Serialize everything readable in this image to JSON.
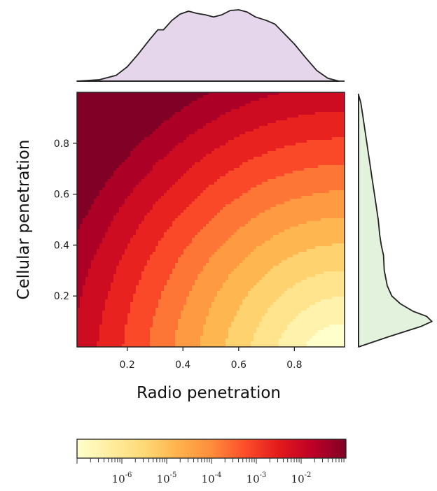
{
  "chart_data": {
    "type": "heatmap",
    "title": "",
    "xlabel": "Radio penetration",
    "ylabel": "Cellular penetration",
    "xlim": [
      0.02,
      0.98
    ],
    "ylim": [
      0.0,
      1.0
    ],
    "x_ticks": [
      0.2,
      0.4,
      0.6,
      0.8
    ],
    "y_ticks": [
      0.2,
      0.4,
      0.6,
      0.8
    ],
    "x_tick_labels": [
      "0.2",
      "0.4",
      "0.6",
      "0.8"
    ],
    "y_tick_labels": [
      "0.2",
      "0.4",
      "0.6",
      "0.8"
    ],
    "contour_levels": 12,
    "colorbar": {
      "scale": "log",
      "range": [
        1e-07,
        0.1
      ],
      "ticks": [
        {
          "value": 1e-06,
          "base": "10",
          "exp": "-6"
        },
        {
          "value": 1e-05,
          "base": "10",
          "exp": "-5"
        },
        {
          "value": 0.0001,
          "base": "10",
          "exp": "-4"
        },
        {
          "value": 0.001,
          "base": "10",
          "exp": "-3"
        },
        {
          "value": 0.01,
          "base": "10",
          "exp": "-2"
        }
      ],
      "colors": [
        "#ffffcc",
        "#ffeda0",
        "#fed976",
        "#feb24c",
        "#fd8d3c",
        "#fc4e2a",
        "#e31a1c",
        "#bd0026",
        "#800026"
      ]
    },
    "top_marginal": {
      "variable": "Radio penetration",
      "fill": "#e6d6eb",
      "x": [
        0.02,
        0.1,
        0.16,
        0.2,
        0.24,
        0.28,
        0.31,
        0.33,
        0.36,
        0.39,
        0.42,
        0.45,
        0.48,
        0.51,
        0.54,
        0.57,
        0.6,
        0.63,
        0.66,
        0.7,
        0.73,
        0.76,
        0.8,
        0.84,
        0.88,
        0.92,
        0.96
      ],
      "density": [
        0.0,
        0.02,
        0.08,
        0.2,
        0.38,
        0.58,
        0.72,
        0.72,
        0.85,
        0.94,
        0.98,
        0.95,
        0.93,
        0.9,
        0.93,
        0.99,
        1.0,
        0.97,
        0.9,
        0.85,
        0.8,
        0.68,
        0.52,
        0.33,
        0.15,
        0.04,
        0.0
      ]
    },
    "right_marginal": {
      "variable": "Cellular penetration",
      "fill": "#e3f2dc",
      "y": [
        0.0,
        0.04,
        0.08,
        0.1,
        0.12,
        0.14,
        0.17,
        0.2,
        0.24,
        0.3,
        0.36,
        0.4,
        0.44,
        0.5,
        0.58,
        0.66,
        0.74,
        0.82,
        0.9,
        0.96,
        0.99
      ],
      "density": [
        0.0,
        0.4,
        0.82,
        0.97,
        0.9,
        0.72,
        0.55,
        0.44,
        0.38,
        0.34,
        0.33,
        0.3,
        0.28,
        0.26,
        0.22,
        0.18,
        0.14,
        0.1,
        0.06,
        0.03,
        0.0
      ]
    }
  }
}
